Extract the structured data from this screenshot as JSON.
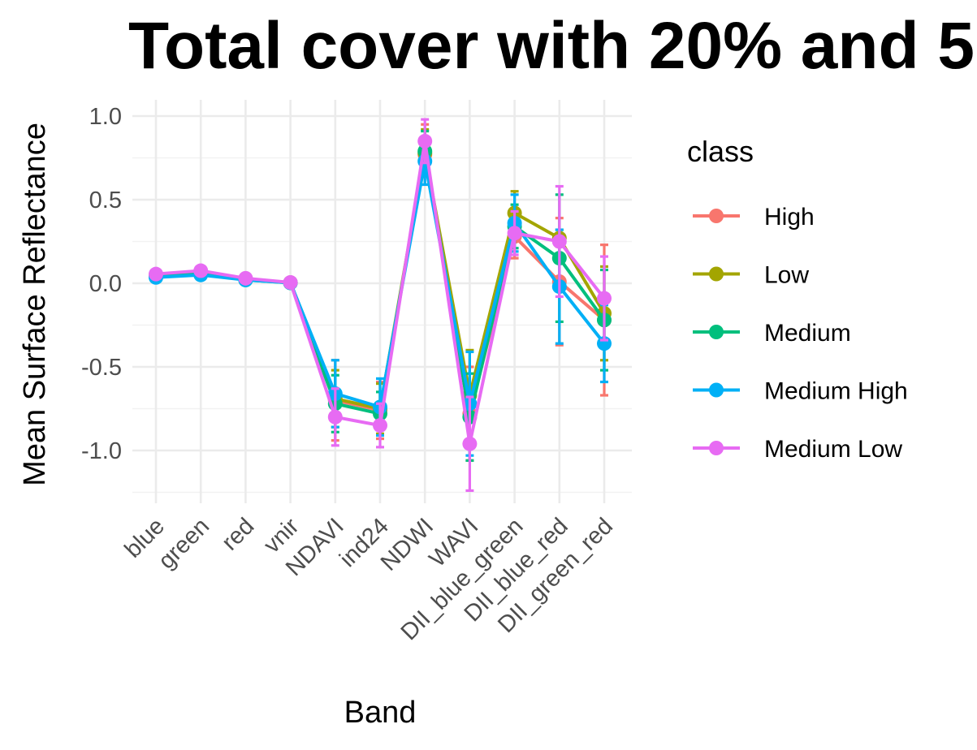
{
  "chart_data": {
    "type": "line",
    "title": "Total cover with 20% and 5",
    "xlabel": "Band",
    "ylabel": "Mean Surface Reflectance",
    "categories": [
      "blue",
      "green",
      "red",
      "vnir",
      "NDAVI",
      "ind24",
      "NDWI",
      "WAVI",
      "DII_blue_green",
      "DII_blue_red",
      "DII_green_red"
    ],
    "ylim": [
      -1.25,
      1.1
    ],
    "yticks": [
      1.0,
      0.5,
      0.0,
      -0.5,
      -1.0
    ],
    "ytick_labels": [
      "1.0",
      "0.5",
      "0.0",
      "-0.5",
      "-1.0"
    ],
    "grid": true,
    "legend": {
      "title": "class",
      "position": "right"
    },
    "series": [
      {
        "name": "High",
        "color": "#F8766D",
        "values": [
          0.05,
          0.07,
          0.025,
          0.003,
          -0.7,
          -0.76,
          0.77,
          -0.78,
          0.28,
          0.01,
          -0.22
        ],
        "errors": [
          0.01,
          0.01,
          0.005,
          0.002,
          0.24,
          0.17,
          0.18,
          0.28,
          0.13,
          0.38,
          0.45
        ]
      },
      {
        "name": "Low",
        "color": "#A3A500",
        "values": [
          0.05,
          0.07,
          0.025,
          0.004,
          -0.69,
          -0.75,
          0.78,
          -0.67,
          0.42,
          0.27,
          -0.18
        ],
        "errors": [
          0.01,
          0.01,
          0.005,
          0.002,
          0.17,
          0.15,
          0.14,
          0.27,
          0.13,
          0.05,
          0.28
        ]
      },
      {
        "name": "Medium",
        "color": "#00BF7D",
        "values": [
          0.04,
          0.06,
          0.02,
          0.003,
          -0.72,
          -0.78,
          0.79,
          -0.8,
          0.34,
          0.15,
          -0.22
        ],
        "errors": [
          0.01,
          0.01,
          0.005,
          0.002,
          0.17,
          0.13,
          0.12,
          0.26,
          0.13,
          0.38,
          0.3
        ]
      },
      {
        "name": "Medium High",
        "color": "#00B0F6",
        "values": [
          0.035,
          0.05,
          0.02,
          0.003,
          -0.66,
          -0.74,
          0.73,
          -0.72,
          0.36,
          -0.02,
          -0.36
        ],
        "errors": [
          0.01,
          0.01,
          0.005,
          0.002,
          0.2,
          0.17,
          0.14,
          0.31,
          0.17,
          0.34,
          0.23
        ]
      },
      {
        "name": "Medium Low",
        "color": "#E76BF3",
        "values": [
          0.055,
          0.075,
          0.03,
          0.005,
          -0.8,
          -0.85,
          0.85,
          -0.96,
          0.3,
          0.25,
          -0.09
        ],
        "errors": [
          0.01,
          0.01,
          0.005,
          0.002,
          0.17,
          0.13,
          0.13,
          0.28,
          0.13,
          0.33,
          0.25
        ]
      }
    ]
  }
}
